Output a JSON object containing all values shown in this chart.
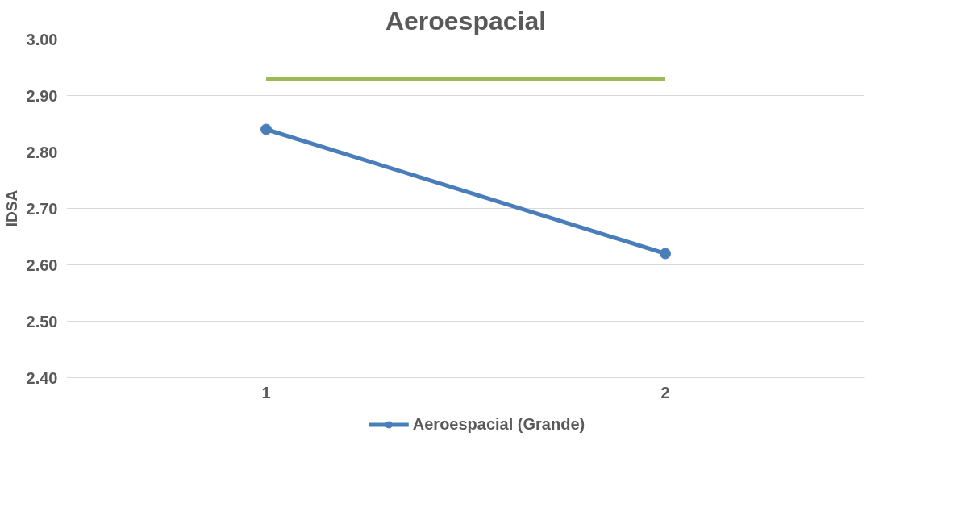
{
  "chart_data": {
    "type": "line",
    "title": "Aeroespacial",
    "ylabel": "IDSA",
    "categories": [
      "1",
      "2"
    ],
    "series": [
      {
        "name": "Aeroespacial (Grande)",
        "color": "#4a7ebb",
        "values": [
          2.84,
          2.62
        ],
        "marker": "circle"
      },
      {
        "color": "#9bbb59",
        "values": [
          2.93,
          2.93
        ],
        "marker": "none"
      }
    ],
    "ylim": [
      2.4,
      3.0
    ],
    "yticks": [
      {
        "value": 2.4,
        "label": "2.40"
      },
      {
        "value": 2.5,
        "label": "2.50"
      },
      {
        "value": 2.6,
        "label": "2.60"
      },
      {
        "value": 2.7,
        "label": "2.70"
      },
      {
        "value": 2.8,
        "label": "2.80"
      },
      {
        "value": 2.9,
        "label": "2.90"
      },
      {
        "value": 3.0,
        "label": "3.00"
      }
    ],
    "grid": "y",
    "legend": "bottom",
    "line_style": "solid"
  }
}
